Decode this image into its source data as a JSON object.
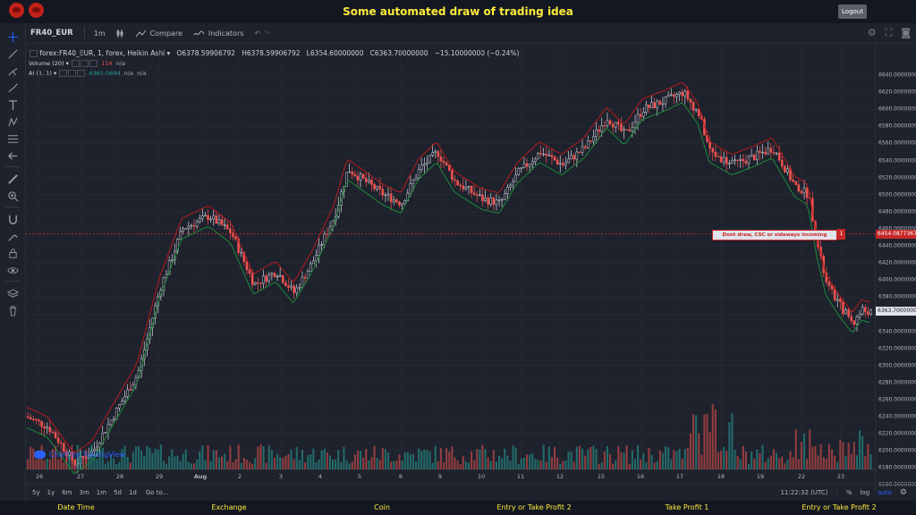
{
  "app": {
    "title": "Some automated draw of trading idea",
    "logout_label": "Logout",
    "logo_names": [
      "cow-logo-1",
      "cow-logo-2"
    ]
  },
  "toolbar_top": {
    "symbol": "FR40_EUR",
    "interval": "1m",
    "compare_label": "Compare",
    "indicators_label": "Indicators"
  },
  "legend": {
    "main": "forex:FR40_EUR, 1, forex, Heikin Ashi",
    "open": "O6378.59906792",
    "high": "H6378.59906792",
    "low": "L6354.60000000",
    "close": "C6363.70000000",
    "change": "−15.10000000 (−0.24%)",
    "volume_label": "Volume (20)",
    "volume_value": "114",
    "volume_na": "n/a",
    "ai_label": "AI (1, 1)",
    "ai_value": "6361.0694",
    "ai_na1": "n/a",
    "ai_na2": "n/a"
  },
  "price_scale": {
    "labels": [
      "6640.00000000",
      "6620.00000000",
      "6600.00000000",
      "6580.00000000",
      "6560.00000000",
      "6540.00000000",
      "6520.00000000",
      "6500.00000000",
      "6480.00000000",
      "6460.00000000",
      "6440.00000000",
      "6420.00000000",
      "6400.00000000",
      "6380.00000000",
      "6360.00000000",
      "6340.00000000",
      "6320.00000000",
      "6300.00000000",
      "6280.00000000",
      "6260.00000000",
      "6240.00000000",
      "6220.00000000",
      "6200.00000000",
      "6180.00000000",
      "6160.00000000"
    ],
    "alert_price": "6454.08773679",
    "current_price": "6363.70000000"
  },
  "annotation": {
    "text": "Dont draw, CSC or sideways incoming",
    "flag": "1"
  },
  "time_axis": [
    "26",
    "27",
    "28",
    "29",
    "Aug",
    "2",
    "3",
    "4",
    "5",
    "8",
    "9",
    "10",
    "11",
    "12",
    "15",
    "16",
    "17",
    "18",
    "19",
    "22",
    "23"
  ],
  "bottom_bar": {
    "ranges": [
      "5y",
      "1y",
      "6m",
      "3m",
      "1m",
      "5d",
      "1d"
    ],
    "goto_label": "Go to...",
    "clock": "11:22:32 (UTC)",
    "percent": "%",
    "log": "log",
    "auto": "auto"
  },
  "watermark": "Chart by TradingView",
  "footer_columns": [
    "Date Time",
    "Exchange",
    "Coin",
    "Entry or Take Profit 2",
    "Take Profit 1",
    "Entry or Take Profit 2"
  ],
  "colors": {
    "accent_yellow": "#ffeb3b",
    "up": "#26a69a",
    "down": "#ef5350",
    "alert_red": "#c62828"
  }
}
